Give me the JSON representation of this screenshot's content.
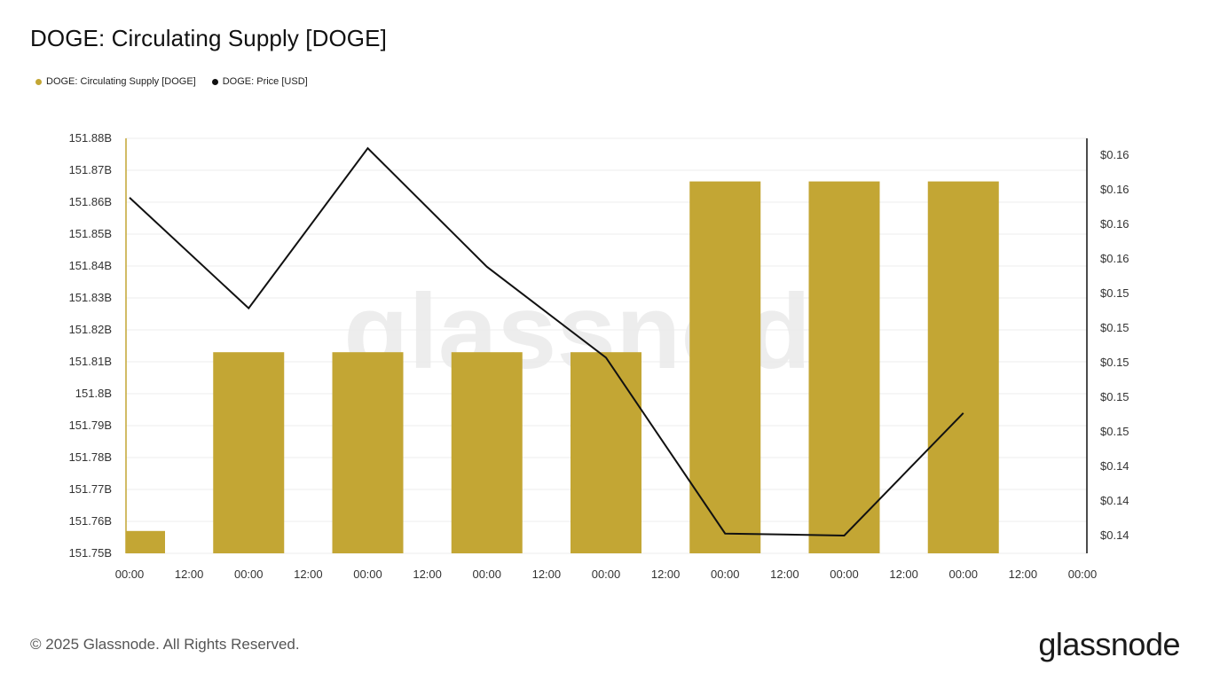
{
  "page": {
    "title": "DOGE: Circulating Supply [DOGE]",
    "footer": "© 2025 Glassnode. All Rights Reserved.",
    "brand": "glassnode",
    "watermark": "glassnode"
  },
  "legend": [
    {
      "label": "DOGE: Circulating Supply [DOGE]",
      "color": "#c3a634"
    },
    {
      "label": "DOGE: Price [USD]",
      "color": "#111111"
    }
  ],
  "chart_data": {
    "type": "bar",
    "title": "DOGE: Circulating Supply [DOGE]",
    "x_tick_labels": [
      "00:00",
      "12:00",
      "00:00",
      "12:00",
      "00:00",
      "12:00",
      "00:00",
      "12:00",
      "00:00",
      "12:00",
      "00:00",
      "12:00",
      "00:00",
      "12:00",
      "00:00",
      "12:00",
      "00:00"
    ],
    "y_left": {
      "min": 151.75,
      "max": 151.88,
      "tick_labels": [
        "151.88B",
        "151.87B",
        "151.86B",
        "151.85B",
        "151.84B",
        "151.83B",
        "151.82B",
        "151.81B",
        "151.8B",
        "151.79B",
        "151.78B",
        "151.77B",
        "151.76B",
        "151.75B"
      ]
    },
    "y_right": {
      "min": 0.1395,
      "max": 0.1605,
      "tick_labels": [
        "$0.16",
        "$0.16",
        "$0.16",
        "$0.16",
        "$0.15",
        "$0.15",
        "$0.15",
        "$0.15",
        "$0.15",
        "$0.14",
        "$0.14",
        "$0.14"
      ]
    },
    "series": [
      {
        "name": "DOGE: Circulating Supply [DOGE]",
        "type": "bar",
        "axis": "left",
        "unit": "B",
        "color": "#c3a634",
        "x": [
          0,
          1,
          2,
          3,
          4,
          5,
          6,
          7
        ],
        "values": [
          151.757,
          151.813,
          151.813,
          151.813,
          151.813,
          151.8665,
          151.8665,
          151.8665
        ]
      },
      {
        "name": "DOGE: Price [USD]",
        "type": "line",
        "axis": "right",
        "color": "#111111",
        "x": [
          0,
          1,
          2,
          3,
          4,
          5,
          6,
          7
        ],
        "values": [
          0.1575,
          0.1519,
          0.16,
          0.154,
          0.1494,
          0.1405,
          0.1404,
          0.1466
        ]
      }
    ],
    "grid": true,
    "legend_position": "top-left"
  }
}
